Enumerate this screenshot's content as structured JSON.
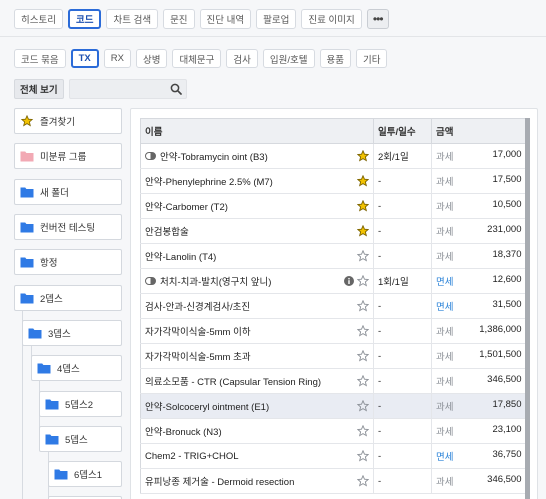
{
  "top_tabs": [
    {
      "label": "히스토리",
      "active": false
    },
    {
      "label": "코드",
      "active": true
    },
    {
      "label": "차트 검색",
      "active": false
    },
    {
      "label": "문진",
      "active": false
    },
    {
      "label": "진단 내역",
      "active": false
    },
    {
      "label": "팔로업",
      "active": false
    },
    {
      "label": "진료 이미지",
      "active": false
    }
  ],
  "more_label": "•••",
  "category_chips": [
    {
      "label": "코드 묶음",
      "active": false
    },
    {
      "label": "TX",
      "active": true
    },
    {
      "label": "RX",
      "active": false
    },
    {
      "label": "상병",
      "active": false
    },
    {
      "label": "대체문구",
      "active": false
    },
    {
      "label": "검사",
      "active": false
    },
    {
      "label": "입원/호텔",
      "active": false
    },
    {
      "label": "용품",
      "active": false
    },
    {
      "label": "기타",
      "active": false
    }
  ],
  "filter": {
    "view_all_label": "전체 보기",
    "search_placeholder": "",
    "search_value": ""
  },
  "folders": [
    {
      "label": "즐겨찾기",
      "icon": "star-icon"
    },
    {
      "label": "미분류 그룹",
      "icon": "folder-pink-icon"
    },
    {
      "label": "새 폴더",
      "icon": "folder-icon"
    },
    {
      "label": "컨버전 테스팅",
      "icon": "folder-icon"
    },
    {
      "label": "항정",
      "icon": "folder-icon"
    },
    {
      "label": "2뎁스",
      "icon": "folder-icon"
    },
    {
      "label": "3뎁스",
      "icon": "folder-icon"
    },
    {
      "label": "4뎁스",
      "icon": "folder-icon"
    },
    {
      "label": "5뎁스2",
      "icon": "folder-icon"
    },
    {
      "label": "5뎁스",
      "icon": "folder-icon"
    },
    {
      "label": "6뎁스1",
      "icon": "folder-icon"
    },
    {
      "label": "",
      "icon": "folder-icon"
    }
  ],
  "table": {
    "columns": [
      "이름",
      "일투/일수",
      "금액"
    ],
    "rows": [
      {
        "name": "안약-Tobramycin oint (B3)",
        "pill": true,
        "info": false,
        "starred": true,
        "dose": "2회/1일",
        "tax": "과세",
        "amount": "17,000",
        "selected": false
      },
      {
        "name": "안약-Phenylephrine 2.5% (M7)",
        "pill": false,
        "info": false,
        "starred": true,
        "dose": "-",
        "tax": "과세",
        "amount": "17,500",
        "selected": false
      },
      {
        "name": "안약-Carbomer (T2)",
        "pill": false,
        "info": false,
        "starred": true,
        "dose": "-",
        "tax": "과세",
        "amount": "10,500",
        "selected": false
      },
      {
        "name": "안검봉합술",
        "pill": false,
        "info": false,
        "starred": true,
        "dose": "-",
        "tax": "과세",
        "amount": "231,000",
        "selected": false
      },
      {
        "name": "안약-Lanolin (T4)",
        "pill": false,
        "info": false,
        "starred": false,
        "dose": "-",
        "tax": "과세",
        "amount": "18,370",
        "selected": false
      },
      {
        "name": "처치-치과-발치(영구치 앞니)",
        "pill": true,
        "info": true,
        "starred": false,
        "dose": "1회/1일",
        "tax": "면세",
        "amount": "12,600",
        "selected": false
      },
      {
        "name": "검사-안과-신경계검사/초진",
        "pill": false,
        "info": false,
        "starred": false,
        "dose": "-",
        "tax": "면세",
        "amount": "31,500",
        "selected": false
      },
      {
        "name": "자가각막이식술-5mm 이하",
        "pill": false,
        "info": false,
        "starred": false,
        "dose": "-",
        "tax": "과세",
        "amount": "1,386,000",
        "selected": false
      },
      {
        "name": "자가각막이식술-5mm 초과",
        "pill": false,
        "info": false,
        "starred": false,
        "dose": "-",
        "tax": "과세",
        "amount": "1,501,500",
        "selected": false
      },
      {
        "name": "의료소모품 - CTR (Capsular Tension Ring)",
        "pill": false,
        "info": false,
        "starred": false,
        "dose": "-",
        "tax": "과세",
        "amount": "346,500",
        "selected": false
      },
      {
        "name": "안약-Solcoceryl ointment (E1)",
        "pill": false,
        "info": false,
        "starred": false,
        "dose": "-",
        "tax": "과세",
        "amount": "17,850",
        "selected": true
      },
      {
        "name": "안약-Bronuck (N3)",
        "pill": false,
        "info": false,
        "starred": false,
        "dose": "-",
        "tax": "과세",
        "amount": "23,100",
        "selected": false
      },
      {
        "name": "Chem2 - TRIG+CHOL",
        "pill": false,
        "info": false,
        "starred": false,
        "dose": "-",
        "tax": "면세",
        "amount": "36,750",
        "selected": false
      },
      {
        "name": "유피낭종 제거술 - Dermoid resection",
        "pill": false,
        "info": false,
        "starred": false,
        "dose": "-",
        "tax": "과세",
        "amount": "346,500",
        "selected": false
      }
    ]
  },
  "colors": {
    "accent": "#2b6bd8",
    "star": "#f2c200",
    "exempt": "#2b83d8",
    "folder": "#2f7ae5"
  }
}
